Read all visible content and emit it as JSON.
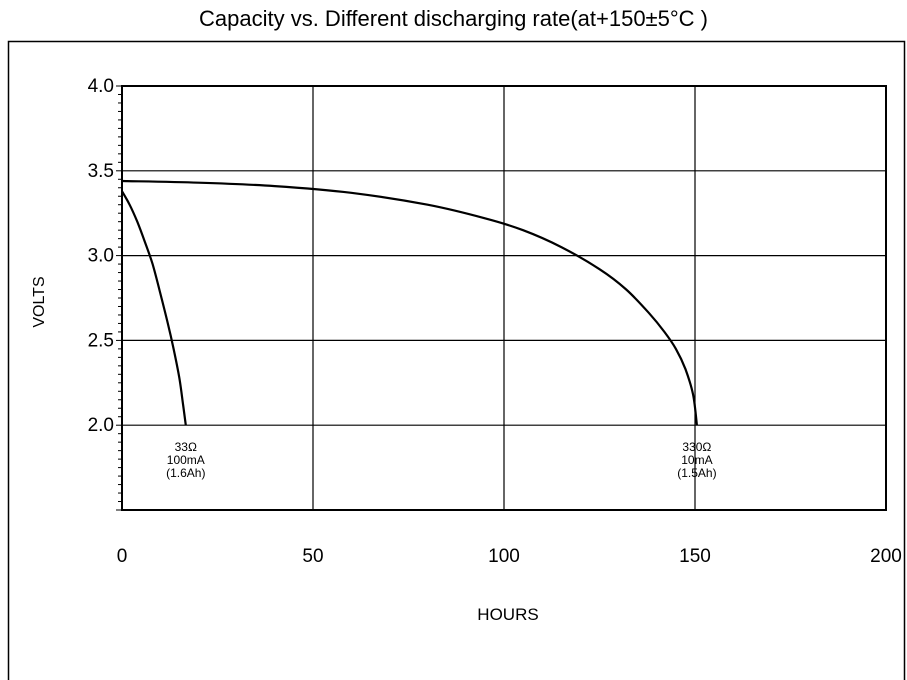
{
  "chart_data": {
    "type": "line",
    "title": "Capacity vs. Different discharging rate(at+150±5°C )",
    "xlabel": "HOURS",
    "ylabel": "VOLTS",
    "xlim": [
      0,
      200
    ],
    "ylim": [
      1.5,
      4.0
    ],
    "x_ticks": [
      "0",
      "50",
      "100",
      "150",
      "200"
    ],
    "y_ticks": [
      "2.0",
      "2.5",
      "3.0",
      "3.5",
      "4.0"
    ],
    "grid": true,
    "series": [
      {
        "points": [
          [
            0,
            3.38
          ],
          [
            2,
            3.3
          ],
          [
            4,
            3.2
          ],
          [
            6,
            3.08
          ],
          [
            8,
            2.95
          ],
          [
            10,
            2.78
          ],
          [
            12,
            2.6
          ],
          [
            13.5,
            2.45
          ],
          [
            15,
            2.28
          ],
          [
            16,
            2.12
          ],
          [
            16.7,
            2.0
          ]
        ],
        "labels": [
          "33Ω",
          "100mA",
          "(1.6Ah)"
        ]
      },
      {
        "points": [
          [
            0,
            3.44
          ],
          [
            20,
            3.43
          ],
          [
            40,
            3.41
          ],
          [
            60,
            3.37
          ],
          [
            80,
            3.3
          ],
          [
            95,
            3.22
          ],
          [
            105,
            3.15
          ],
          [
            115,
            3.05
          ],
          [
            125,
            2.92
          ],
          [
            132,
            2.8
          ],
          [
            138,
            2.66
          ],
          [
            142,
            2.55
          ],
          [
            145,
            2.45
          ],
          [
            147.5,
            2.33
          ],
          [
            149.5,
            2.18
          ],
          [
            150.5,
            2.0
          ]
        ],
        "labels": [
          "330Ω",
          "10mA",
          "(1.5Ah)"
        ]
      }
    ]
  }
}
